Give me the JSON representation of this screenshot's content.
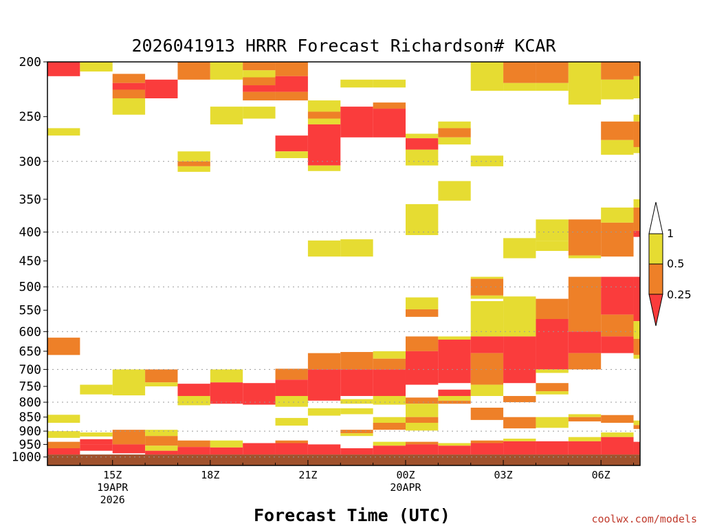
{
  "chart_data": {
    "type": "heatmap",
    "title": "2026041913 HRRR Forecast Richardson# KCAR",
    "xlabel": "Forecast Time (UTC)",
    "ylabel": "",
    "credit": "coolwx.com/models",
    "x_unit": "hour UTC (13 = 19 APR 13Z, 24 = 20 APR 00Z)",
    "xlim": [
      13,
      31.2
    ],
    "y_scale": "log (pressure, hPa)",
    "ylim": [
      1035,
      200
    ],
    "yticks": [
      200,
      250,
      300,
      350,
      400,
      450,
      500,
      550,
      600,
      650,
      700,
      750,
      800,
      850,
      900,
      950,
      1000
    ],
    "xticks": [
      {
        "x": 15,
        "lines": [
          "15Z",
          "19APR",
          "2026"
        ]
      },
      {
        "x": 18,
        "lines": [
          "18Z"
        ]
      },
      {
        "x": 21,
        "lines": [
          "21Z"
        ]
      },
      {
        "x": 24,
        "lines": [
          "00Z",
          "20APR"
        ]
      },
      {
        "x": 27,
        "lines": [
          "03Z"
        ]
      },
      {
        "x": 30,
        "lines": [
          "06Z"
        ]
      }
    ],
    "grid": "dotted horizontal at 300, 400, 500, 600, 700, 800, 900, 1000 hPa",
    "legend": {
      "placement": "right",
      "levels": [
        "1",
        "0.5",
        "0.25"
      ],
      "colors": {
        "high": "#ffffff",
        "mid_high": "#e6dc32",
        "mid_low": "#ee8028",
        "low": "#fa3c3c"
      }
    },
    "colors": {
      "y": "#e6dc32",
      "o": "#ee8028",
      "r": "#fa3c3c",
      "ground": "#a0522d"
    },
    "ground_below_hPa": 990,
    "cells": [
      [
        13,
        14,
        200,
        212,
        "r"
      ],
      [
        13,
        14,
        262,
        270,
        "y"
      ],
      [
        13,
        14,
        615,
        660,
        "o"
      ],
      [
        13,
        14,
        842,
        870,
        "y"
      ],
      [
        13,
        14,
        900,
        925,
        "y"
      ],
      [
        13,
        14,
        940,
        965,
        "o"
      ],
      [
        13,
        14,
        965,
        990,
        "r"
      ],
      [
        14,
        15,
        200,
        208,
        "y"
      ],
      [
        14,
        15,
        745,
        775,
        "y"
      ],
      [
        14,
        15,
        905,
        920,
        "y"
      ],
      [
        14,
        15,
        930,
        950,
        "r"
      ],
      [
        14,
        15,
        950,
        975,
        "r"
      ],
      [
        15,
        16,
        210,
        218,
        "o"
      ],
      [
        15,
        16,
        218,
        224,
        "r"
      ],
      [
        15,
        16,
        224,
        232,
        "o"
      ],
      [
        15,
        16,
        232,
        248,
        "y"
      ],
      [
        15,
        16,
        700,
        778,
        "y"
      ],
      [
        15,
        16,
        895,
        950,
        "o"
      ],
      [
        15,
        16,
        950,
        985,
        "r"
      ],
      [
        16,
        17,
        215,
        232,
        "r"
      ],
      [
        16,
        17,
        700,
        738,
        "o"
      ],
      [
        16,
        17,
        738,
        750,
        "y"
      ],
      [
        16,
        17,
        895,
        918,
        "y"
      ],
      [
        16,
        17,
        918,
        955,
        "o"
      ],
      [
        16,
        17,
        955,
        975,
        "y"
      ],
      [
        16,
        17,
        975,
        990,
        "r"
      ],
      [
        17,
        18,
        200,
        215,
        "o"
      ],
      [
        17,
        18,
        288,
        300,
        "y"
      ],
      [
        17,
        18,
        300,
        306,
        "o"
      ],
      [
        17,
        18,
        306,
        313,
        "y"
      ],
      [
        17,
        18,
        742,
        780,
        "r"
      ],
      [
        17,
        18,
        780,
        810,
        "y"
      ],
      [
        17,
        18,
        935,
        960,
        "o"
      ],
      [
        17,
        18,
        960,
        990,
        "r"
      ],
      [
        18,
        19,
        200,
        215,
        "y"
      ],
      [
        18,
        19,
        240,
        258,
        "y"
      ],
      [
        18,
        19,
        700,
        738,
        "y"
      ],
      [
        18,
        19,
        738,
        805,
        "r"
      ],
      [
        18,
        19,
        935,
        962,
        "y"
      ],
      [
        18,
        19,
        962,
        990,
        "r"
      ],
      [
        19,
        20,
        200,
        207,
        "o"
      ],
      [
        19,
        20,
        207,
        213,
        "y"
      ],
      [
        19,
        20,
        213,
        220,
        "o"
      ],
      [
        19,
        20,
        220,
        226,
        "r"
      ],
      [
        19,
        20,
        226,
        234,
        "o"
      ],
      [
        19,
        20,
        240,
        252,
        "y"
      ],
      [
        19,
        20,
        740,
        808,
        "r"
      ],
      [
        19,
        20,
        945,
        990,
        "r"
      ],
      [
        20,
        21,
        200,
        212,
        "o"
      ],
      [
        20,
        21,
        212,
        226,
        "r"
      ],
      [
        20,
        21,
        226,
        234,
        "o"
      ],
      [
        20,
        21,
        270,
        288,
        "r"
      ],
      [
        20,
        21,
        288,
        296,
        "y"
      ],
      [
        20,
        21,
        698,
        730,
        "o"
      ],
      [
        20,
        21,
        730,
        780,
        "r"
      ],
      [
        20,
        21,
        780,
        815,
        "y"
      ],
      [
        20,
        21,
        853,
        880,
        "y"
      ],
      [
        20,
        21,
        935,
        945,
        "o"
      ],
      [
        20,
        21,
        945,
        990,
        "r"
      ],
      [
        21,
        22,
        234,
        245,
        "y"
      ],
      [
        21,
        22,
        245,
        252,
        "o"
      ],
      [
        21,
        22,
        252,
        258,
        "y"
      ],
      [
        21,
        22,
        258,
        305,
        "r"
      ],
      [
        21,
        22,
        305,
        312,
        "y"
      ],
      [
        21,
        22,
        414,
        442,
        "y"
      ],
      [
        21,
        22,
        655,
        700,
        "o"
      ],
      [
        21,
        22,
        700,
        795,
        "r"
      ],
      [
        21,
        22,
        820,
        845,
        "y"
      ],
      [
        21,
        22,
        950,
        990,
        "r"
      ],
      [
        22,
        23,
        215,
        222,
        "y"
      ],
      [
        22,
        23,
        240,
        272,
        "r"
      ],
      [
        22,
        23,
        412,
        442,
        "y"
      ],
      [
        22,
        23,
        652,
        700,
        "o"
      ],
      [
        22,
        23,
        700,
        780,
        "r"
      ],
      [
        22,
        23,
        790,
        805,
        "y"
      ],
      [
        22,
        23,
        820,
        840,
        "y"
      ],
      [
        22,
        23,
        895,
        908,
        "o"
      ],
      [
        22,
        23,
        908,
        918,
        "y"
      ],
      [
        22,
        23,
        965,
        990,
        "r"
      ],
      [
        23,
        24,
        215,
        222,
        "y"
      ],
      [
        23,
        24,
        236,
        242,
        "o"
      ],
      [
        23,
        24,
        242,
        272,
        "r"
      ],
      [
        23,
        24,
        650,
        670,
        "y"
      ],
      [
        23,
        24,
        670,
        700,
        "o"
      ],
      [
        23,
        24,
        700,
        780,
        "r"
      ],
      [
        23,
        24,
        780,
        808,
        "y"
      ],
      [
        23,
        24,
        850,
        870,
        "y"
      ],
      [
        23,
        24,
        870,
        895,
        "o"
      ],
      [
        23,
        24,
        940,
        955,
        "y"
      ],
      [
        23,
        24,
        955,
        990,
        "r"
      ],
      [
        24,
        25,
        268,
        273,
        "y"
      ],
      [
        24,
        25,
        273,
        286,
        "r"
      ],
      [
        24,
        25,
        286,
        305,
        "y"
      ],
      [
        24,
        25,
        357,
        405,
        "y"
      ],
      [
        24,
        25,
        522,
        548,
        "y"
      ],
      [
        24,
        25,
        548,
        565,
        "o"
      ],
      [
        24,
        25,
        612,
        650,
        "o"
      ],
      [
        24,
        25,
        650,
        745,
        "r"
      ],
      [
        24,
        25,
        785,
        805,
        "o"
      ],
      [
        24,
        25,
        805,
        850,
        "y"
      ],
      [
        24,
        25,
        850,
        870,
        "o"
      ],
      [
        24,
        25,
        870,
        898,
        "y"
      ],
      [
        24,
        25,
        940,
        950,
        "o"
      ],
      [
        24,
        25,
        950,
        990,
        "r"
      ],
      [
        25,
        26,
        255,
        262,
        "y"
      ],
      [
        25,
        26,
        262,
        272,
        "o"
      ],
      [
        25,
        26,
        272,
        280,
        "y"
      ],
      [
        25,
        26,
        325,
        352,
        "y"
      ],
      [
        25,
        26,
        612,
        620,
        "y"
      ],
      [
        25,
        26,
        620,
        740,
        "r"
      ],
      [
        25,
        26,
        760,
        780,
        "r"
      ],
      [
        25,
        26,
        780,
        795,
        "y"
      ],
      [
        25,
        26,
        795,
        805,
        "o"
      ],
      [
        25,
        26,
        945,
        955,
        "y"
      ],
      [
        25,
        26,
        955,
        990,
        "r"
      ],
      [
        26,
        27,
        200,
        225,
        "y"
      ],
      [
        26,
        27,
        293,
        306,
        "y"
      ],
      [
        26,
        27,
        480,
        484,
        "y"
      ],
      [
        26,
        27,
        484,
        518,
        "o"
      ],
      [
        26,
        27,
        518,
        525,
        "y"
      ],
      [
        26,
        27,
        530,
        612,
        "y"
      ],
      [
        26,
        27,
        612,
        655,
        "r"
      ],
      [
        26,
        27,
        655,
        745,
        "o"
      ],
      [
        26,
        27,
        745,
        780,
        "y"
      ],
      [
        26,
        27,
        818,
        860,
        "o"
      ],
      [
        26,
        27,
        935,
        945,
        "o"
      ],
      [
        26,
        27,
        945,
        990,
        "r"
      ],
      [
        27,
        28,
        200,
        218,
        "o"
      ],
      [
        27,
        28,
        218,
        225,
        "y"
      ],
      [
        27,
        28,
        410,
        445,
        "y"
      ],
      [
        27,
        28,
        520,
        612,
        "y"
      ],
      [
        27,
        28,
        612,
        740,
        "r"
      ],
      [
        27,
        28,
        780,
        800,
        "o"
      ],
      [
        27,
        28,
        850,
        890,
        "o"
      ],
      [
        27,
        28,
        928,
        938,
        "y"
      ],
      [
        27,
        28,
        938,
        990,
        "r"
      ],
      [
        28,
        29,
        200,
        218,
        "o"
      ],
      [
        28,
        29,
        218,
        225,
        "y"
      ],
      [
        28,
        29,
        380,
        415,
        "y"
      ],
      [
        28,
        29,
        415,
        432,
        "y"
      ],
      [
        28,
        29,
        525,
        570,
        "o"
      ],
      [
        28,
        29,
        570,
        700,
        "r"
      ],
      [
        28,
        29,
        700,
        710,
        "y"
      ],
      [
        28,
        29,
        740,
        765,
        "o"
      ],
      [
        28,
        29,
        765,
        775,
        "y"
      ],
      [
        28,
        29,
        850,
        888,
        "y"
      ],
      [
        28,
        29,
        938,
        990,
        "r"
      ],
      [
        29,
        30,
        200,
        238,
        "y"
      ],
      [
        29,
        30,
        380,
        440,
        "o"
      ],
      [
        29,
        30,
        440,
        445,
        "y"
      ],
      [
        29,
        30,
        480,
        600,
        "o"
      ],
      [
        29,
        30,
        600,
        655,
        "r"
      ],
      [
        29,
        30,
        655,
        700,
        "o"
      ],
      [
        29,
        30,
        840,
        850,
        "y"
      ],
      [
        29,
        30,
        850,
        865,
        "o"
      ],
      [
        29,
        30,
        922,
        938,
        "y"
      ],
      [
        29,
        30,
        938,
        990,
        "r"
      ],
      [
        30,
        31,
        200,
        215,
        "o"
      ],
      [
        30,
        31,
        215,
        233,
        "y"
      ],
      [
        30,
        31,
        255,
        275,
        "o"
      ],
      [
        30,
        31,
        275,
        292,
        "y"
      ],
      [
        30,
        31,
        362,
        385,
        "y"
      ],
      [
        30,
        31,
        385,
        442,
        "o"
      ],
      [
        30,
        31,
        480,
        560,
        "r"
      ],
      [
        30,
        31,
        560,
        612,
        "o"
      ],
      [
        30,
        31,
        612,
        655,
        "r"
      ],
      [
        30,
        31,
        843,
        870,
        "o"
      ],
      [
        30,
        31,
        905,
        922,
        "y"
      ],
      [
        30,
        31,
        922,
        990,
        "r"
      ],
      [
        31,
        31.2,
        200,
        212,
        "o"
      ],
      [
        31,
        31.2,
        212,
        232,
        "y"
      ],
      [
        31,
        31.2,
        248,
        255,
        "y"
      ],
      [
        31,
        31.2,
        255,
        283,
        "o"
      ],
      [
        31,
        31.2,
        283,
        290,
        "y"
      ],
      [
        31,
        31.2,
        350,
        362,
        "y"
      ],
      [
        31,
        31.2,
        362,
        398,
        "o"
      ],
      [
        31,
        31.2,
        398,
        408,
        "r"
      ],
      [
        31,
        31.2,
        480,
        575,
        "r"
      ],
      [
        31,
        31.2,
        575,
        618,
        "y"
      ],
      [
        31,
        31.2,
        618,
        660,
        "o"
      ],
      [
        31,
        31.2,
        660,
        670,
        "y"
      ],
      [
        31,
        31.2,
        862,
        878,
        "y"
      ],
      [
        31,
        31.2,
        878,
        892,
        "o"
      ],
      [
        31,
        31.2,
        940,
        990,
        "r"
      ]
    ]
  }
}
